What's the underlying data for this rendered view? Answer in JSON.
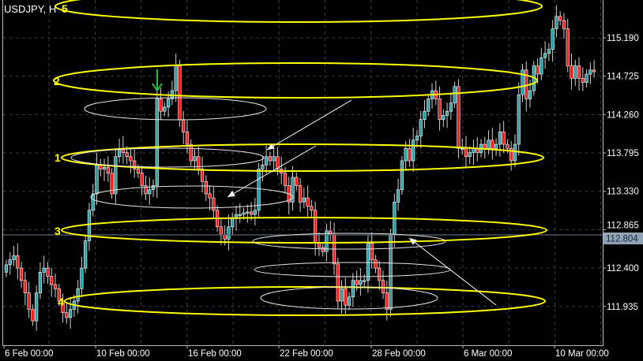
{
  "window": {
    "title": "USDJPY, H"
  },
  "colors": {
    "background": "#000000",
    "bull": "#2a9fa8",
    "bear": "#ff1a1a",
    "wick": "#ffffff",
    "level_ellipse": "#ffff00",
    "zone_ellipse": "#e6e6e6",
    "arrow_signal": "#22c040",
    "price_line": "#5a6470",
    "price_tag": "#8fa3b6"
  },
  "chart_data": {
    "type": "candlestick",
    "symbol": "USDJPY",
    "ylim": [
      111.55,
      115.65
    ],
    "y_ticks": [
      "115.190",
      "114.725",
      "114.260",
      "113.795",
      "113.330",
      "112.865",
      "112.400",
      "111.935"
    ],
    "x_ticks": [
      "6 Feb 00:00",
      "10 Feb 00:00",
      "16 Feb 00:00",
      "22 Feb 00:00",
      "28 Feb 00:00",
      "6 Mar 00:00",
      "10 Mar 00:00"
    ],
    "grid": true,
    "horizontal_line": {
      "price": "112.804"
    },
    "first_open": 112.35,
    "closes": [
      112.44,
      112.5,
      112.55,
      112.4,
      112.25,
      112.1,
      111.9,
      111.76,
      112.1,
      112.35,
      112.4,
      112.3,
      112.2,
      112.15,
      112.0,
      111.86,
      111.8,
      111.9,
      112.0,
      112.15,
      112.4,
      112.73,
      113.1,
      113.3,
      113.65,
      113.6,
      113.62,
      113.55,
      113.3,
      113.75,
      113.85,
      113.8,
      113.75,
      113.7,
      113.6,
      113.55,
      113.4,
      113.3,
      113.35,
      113.4,
      114.45,
      114.3,
      114.35,
      114.45,
      114.55,
      114.85,
      114.2,
      114.05,
      113.9,
      113.7,
      113.75,
      113.6,
      113.45,
      113.3,
      113.25,
      113.1,
      112.9,
      112.8,
      112.75,
      112.9,
      113.0,
      113.05,
      113.05,
      113.07,
      113.08,
      113.05,
      113.1,
      113.6,
      113.65,
      113.75,
      113.7,
      113.75,
      113.6,
      113.55,
      113.4,
      113.2,
      113.5,
      113.4,
      113.2,
      113.25,
      113.15,
      113.1,
      112.7,
      112.65,
      112.6,
      112.85,
      112.8,
      112.45,
      112.0,
      112.15,
      111.95,
      112.05,
      112.25,
      112.2,
      112.25,
      112.25,
      112.7,
      112.5,
      112.4,
      112.25,
      112.1,
      111.9,
      112.8,
      113.2,
      113.35,
      113.7,
      113.85,
      113.7,
      113.95,
      114.0,
      114.2,
      114.3,
      114.45,
      114.55,
      114.45,
      114.2,
      114.25,
      114.3,
      114.4,
      114.6,
      113.85,
      113.85,
      113.75,
      113.8,
      113.85,
      113.8,
      113.9,
      113.85,
      113.95,
      113.85,
      113.9,
      114.05,
      113.9,
      113.85,
      113.7,
      113.9,
      114.5,
      114.8,
      114.45,
      114.55,
      114.85,
      114.75,
      114.95,
      115.0,
      115.05,
      115.3,
      115.45,
      115.4,
      115.3,
      114.85,
      114.7,
      114.85,
      114.7,
      114.65,
      114.75,
      114.8,
      114.78
    ],
    "annotations": {
      "level_labels": [
        "5",
        "2",
        "1",
        "3",
        "4"
      ]
    }
  }
}
